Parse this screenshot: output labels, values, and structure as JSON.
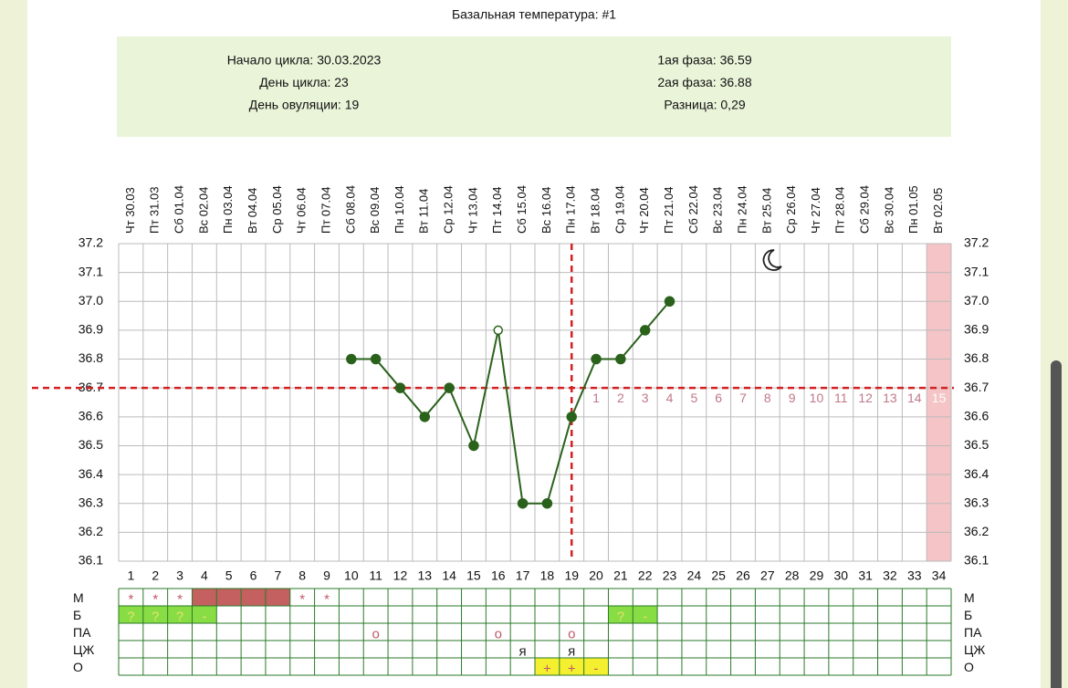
{
  "chart_data": {
    "type": "line",
    "title": "Базальная температура: #1",
    "info_left": [
      "Начало цикла: 30.03.2023",
      "День цикла: 23",
      "День овуляции: 19"
    ],
    "info_right": [
      "1ая фаза: 36.59",
      "2ая фаза: 36.88",
      "Разница: 0,29"
    ],
    "dates": [
      "Чт 30.03",
      "Пт 31.03",
      "Сб 01.04",
      "Вс 02.04",
      "Пн 03.04",
      "Вт 04.04",
      "Ср 05.04",
      "Чт 06.04",
      "Пт 07.04",
      "Сб 08.04",
      "Вс 09.04",
      "Пн 10.04",
      "Вт 11.04",
      "Ср 12.04",
      "Чт 13.04",
      "Пт 14.04",
      "Сб 15.04",
      "Вс 16.04",
      "Пн 17.04",
      "Вт 18.04",
      "Ср 19.04",
      "Чт 20.04",
      "Пт 21.04",
      "Сб 22.04",
      "Вс 23.04",
      "Пн 24.04",
      "Вт 25.04",
      "Ср 26.04",
      "Чт 27.04",
      "Пт 28.04",
      "Сб 29.04",
      "Вс 30.04",
      "Пн 01.05",
      "Вт 02.05"
    ],
    "x": [
      1,
      2,
      3,
      4,
      5,
      6,
      7,
      8,
      9,
      10,
      11,
      12,
      13,
      14,
      15,
      16,
      17,
      18,
      19,
      20,
      21,
      22,
      23,
      24,
      25,
      26,
      27,
      28,
      29,
      30,
      31,
      32,
      33,
      34
    ],
    "series": [
      {
        "name": "t",
        "color": "#2a621c",
        "values": [
          null,
          null,
          null,
          null,
          null,
          null,
          null,
          null,
          null,
          36.8,
          36.8,
          36.7,
          36.6,
          36.7,
          36.5,
          36.9,
          36.3,
          36.3,
          36.6,
          36.8,
          36.8,
          36.9,
          37.0,
          null,
          null,
          null,
          null,
          null,
          null,
          null,
          null,
          null,
          null,
          null
        ]
      }
    ],
    "hollow_days": [
      16
    ],
    "ylim": [
      36.1,
      37.2
    ],
    "yticks": [
      37.2,
      37.1,
      {
        "value": 37,
        "label": "37.0"
      },
      36.9,
      36.8,
      36.7,
      36.6,
      36.5,
      36.4,
      36.3,
      36.2,
      36.1
    ],
    "coverline": 36.7,
    "ovulation_day": 19,
    "line_color": "#d42020",
    "phase2_days": [
      1,
      2,
      3,
      4,
      5,
      6,
      7,
      8,
      9,
      10,
      11,
      12,
      13,
      14,
      15
    ],
    "highlight_day": 34,
    "highlight_color": "#f4c4c6",
    "rows": [
      {
        "label": "М",
        "color": "#c05868",
        "cells": [
          {
            "day": 1,
            "text": "*"
          },
          {
            "day": 2,
            "text": "*"
          },
          {
            "day": 3,
            "text": "*"
          },
          {
            "day": 4,
            "fill": "#c46060"
          },
          {
            "day": 5,
            "fill": "#c46060"
          },
          {
            "day": 6,
            "fill": "#c46060"
          },
          {
            "day": 7,
            "fill": "#c46060"
          },
          {
            "day": 8,
            "text": "*"
          },
          {
            "day": 9,
            "text": "*"
          }
        ]
      },
      {
        "label": "Б",
        "color": "#e8e070",
        "cells": [
          {
            "day": 1,
            "text": "?",
            "fill": "#88dd44"
          },
          {
            "day": 2,
            "text": "?",
            "fill": "#88dd44"
          },
          {
            "day": 3,
            "text": "?",
            "fill": "#88dd44"
          },
          {
            "day": 4,
            "text": "-",
            "fill": "#88dd44"
          },
          {
            "day": 21,
            "text": "?",
            "fill": "#88dd44"
          },
          {
            "day": 22,
            "text": "-",
            "fill": "#88dd44"
          }
        ]
      },
      {
        "label": "ПА",
        "color": "#c05868",
        "cells": [
          {
            "day": 11,
            "text": "o"
          },
          {
            "day": 16,
            "text": "o"
          },
          {
            "day": 19,
            "text": "o"
          }
        ]
      },
      {
        "label": "ЦЖ",
        "color": "#222",
        "cells": [
          {
            "day": 17,
            "text": "я"
          },
          {
            "day": 19,
            "text": "я"
          }
        ]
      },
      {
        "label": "О",
        "color": "#c05868",
        "cells": [
          {
            "day": 18,
            "text": "+",
            "fill": "#f4f030"
          },
          {
            "day": 19,
            "text": "+",
            "fill": "#f4f030"
          },
          {
            "day": 20,
            "text": "-",
            "fill": "#f4f030"
          }
        ]
      }
    ]
  }
}
